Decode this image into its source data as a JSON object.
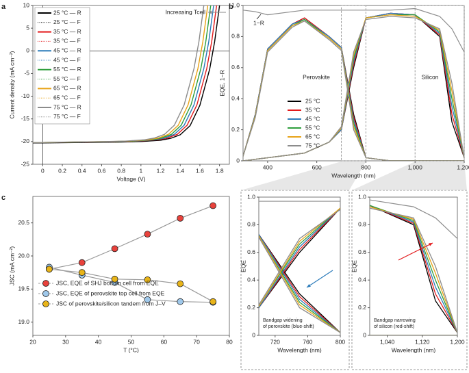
{
  "chart_data": [
    {
      "type": "line",
      "label": "a",
      "xlabel": "Voltage (V)",
      "ylabel": "Current density (mA cm⁻²)",
      "xlim": [
        -0.1,
        1.9
      ],
      "xticks": [
        0,
        0.2,
        0.4,
        0.6,
        0.8,
        1.0,
        1.2,
        1.4,
        1.6,
        1.8
      ],
      "ylim": [
        -25,
        10
      ],
      "yticks": [
        -25,
        -20,
        -15,
        -10,
        -5,
        0,
        5,
        10
      ],
      "annotation": "Increasing Tcell",
      "series": [
        {
          "name": "25 °C — R",
          "color": "#000000",
          "style": "solid",
          "x": [
            -0.1,
            0,
            0.4,
            0.8,
            1.0,
            1.2,
            1.3,
            1.4,
            1.5,
            1.6,
            1.7,
            1.75,
            1.8
          ],
          "values": [
            -20.3,
            -20.3,
            -20.2,
            -20.1,
            -20.0,
            -19.7,
            -19.3,
            -18.5,
            -16.5,
            -12,
            -4,
            2,
            10
          ]
        },
        {
          "name": "25 °C — F",
          "color": "#000000",
          "style": "dotted",
          "x": [
            -0.1,
            0,
            0.4,
            0.8,
            1.0,
            1.2,
            1.3,
            1.4,
            1.5,
            1.6,
            1.7,
            1.75,
            1.8
          ],
          "values": [
            -20.3,
            -20.3,
            -20.2,
            -20.1,
            -20.0,
            -19.7,
            -19.3,
            -18.5,
            -16.5,
            -12,
            -4,
            2,
            10
          ]
        },
        {
          "name": "35 °C — R",
          "color": "#e31a1c",
          "style": "solid",
          "x": [
            -0.1,
            0,
            0.37,
            0.77,
            0.97,
            1.17,
            1.27,
            1.37,
            1.47,
            1.57,
            1.67,
            1.72,
            1.77
          ],
          "values": [
            -20.2,
            -20.2,
            -20.1,
            -20.0,
            -19.9,
            -19.6,
            -19.2,
            -18.4,
            -16.4,
            -11.9,
            -3.9,
            2,
            10
          ]
        },
        {
          "name": "35 °C — F",
          "color": "#e31a1c",
          "style": "dotted",
          "x": [
            -0.1,
            0,
            0.37,
            0.77,
            0.97,
            1.17,
            1.27,
            1.37,
            1.47,
            1.57,
            1.67,
            1.72,
            1.77
          ],
          "values": [
            -20.2,
            -20.2,
            -20.1,
            -20.0,
            -19.9,
            -19.6,
            -19.2,
            -18.4,
            -16.4,
            -11.9,
            -3.9,
            2,
            10
          ]
        },
        {
          "name": "45 °C — R",
          "color": "#2b7bba",
          "style": "solid",
          "x": [
            -0.1,
            0,
            0.34,
            0.74,
            0.94,
            1.14,
            1.24,
            1.34,
            1.44,
            1.54,
            1.64,
            1.69,
            1.74
          ],
          "values": [
            -20.2,
            -20.2,
            -20.1,
            -20.0,
            -19.9,
            -19.6,
            -19.2,
            -18.4,
            -16.4,
            -11.9,
            -3.9,
            2,
            10
          ]
        },
        {
          "name": "45 °C — F",
          "color": "#2b7bba",
          "style": "dotted",
          "x": [
            -0.1,
            0,
            0.34,
            0.74,
            0.94,
            1.14,
            1.24,
            1.34,
            1.44,
            1.54,
            1.64,
            1.69,
            1.74
          ],
          "values": [
            -20.2,
            -20.2,
            -20.1,
            -20.0,
            -19.9,
            -19.6,
            -19.2,
            -18.4,
            -16.4,
            -11.9,
            -3.9,
            2,
            10
          ]
        },
        {
          "name": "55 °C — R",
          "color": "#2e9e3c",
          "style": "solid",
          "x": [
            -0.1,
            0,
            0.31,
            0.71,
            0.91,
            1.11,
            1.21,
            1.31,
            1.41,
            1.51,
            1.61,
            1.66,
            1.71
          ],
          "values": [
            -20.2,
            -20.2,
            -20.1,
            -20.0,
            -19.9,
            -19.6,
            -19.2,
            -18.4,
            -16.4,
            -11.9,
            -3.9,
            2,
            10
          ]
        },
        {
          "name": "55 °C — F",
          "color": "#2e9e3c",
          "style": "dotted",
          "x": [
            -0.1,
            0,
            0.31,
            0.71,
            0.91,
            1.11,
            1.21,
            1.31,
            1.41,
            1.51,
            1.61,
            1.66,
            1.71
          ],
          "values": [
            -20.2,
            -20.2,
            -20.1,
            -20.0,
            -19.9,
            -19.6,
            -19.2,
            -18.4,
            -16.4,
            -11.9,
            -3.9,
            2,
            10
          ]
        },
        {
          "name": "65 °C — R",
          "color": "#e8a317",
          "style": "solid",
          "x": [
            -0.1,
            0,
            0.28,
            0.68,
            0.88,
            1.08,
            1.18,
            1.28,
            1.38,
            1.48,
            1.58,
            1.63,
            1.68
          ],
          "values": [
            -20.2,
            -20.2,
            -20.1,
            -20.0,
            -19.9,
            -19.6,
            -19.2,
            -18.4,
            -16.4,
            -11.9,
            -3.9,
            2,
            10
          ]
        },
        {
          "name": "65 °C — F",
          "color": "#e8a317",
          "style": "dotted",
          "x": [
            -0.1,
            0,
            0.28,
            0.68,
            0.88,
            1.08,
            1.18,
            1.28,
            1.38,
            1.48,
            1.58,
            1.63,
            1.68
          ],
          "values": [
            -20.2,
            -20.2,
            -20.1,
            -20.0,
            -19.9,
            -19.6,
            -19.2,
            -18.4,
            -16.4,
            -11.9,
            -3.9,
            2,
            10
          ]
        },
        {
          "name": "75 °C — R",
          "color": "#8c8c8c",
          "style": "solid",
          "x": [
            -0.1,
            0,
            0.24,
            0.64,
            0.84,
            1.04,
            1.14,
            1.24,
            1.34,
            1.44,
            1.54,
            1.59,
            1.64
          ],
          "values": [
            -20.2,
            -20.2,
            -20.1,
            -20.0,
            -19.9,
            -19.6,
            -19.2,
            -18.4,
            -16.4,
            -11.9,
            -3.9,
            2,
            10
          ]
        },
        {
          "name": "75 °C — F",
          "color": "#8c8c8c",
          "style": "dotted",
          "x": [
            -0.1,
            0,
            0.24,
            0.64,
            0.84,
            1.04,
            1.14,
            1.24,
            1.34,
            1.44,
            1.54,
            1.59,
            1.64
          ],
          "values": [
            -20.2,
            -20.2,
            -20.1,
            -20.0,
            -19.9,
            -19.6,
            -19.2,
            -18.4,
            -16.4,
            -11.9,
            -3.9,
            2,
            10
          ]
        }
      ]
    },
    {
      "type": "line",
      "label": "b",
      "xlabel": "Wavelength (nm)",
      "ylabel": "EQE, 1−R",
      "xlim": [
        300,
        1200
      ],
      "xticks": [
        400,
        600,
        800,
        {
          "value": 1000,
          "label": "1,000"
        },
        {
          "value": 1200,
          "label": "1,200"
        }
      ],
      "ylim": [
        0,
        1
      ],
      "yticks": [
        0,
        0.2,
        0.4,
        0.6,
        0.8,
        {
          "value": 1,
          "label": "1.0"
        }
      ],
      "annotations": [
        "Perovskite",
        "Silicon",
        "1−R"
      ],
      "x": [
        300,
        350,
        400,
        500,
        550,
        650,
        700,
        750,
        800,
        900,
        1000,
        1100,
        1150,
        1200
      ],
      "reflectance": [
        0.97,
        0.96,
        0.94,
        0.96,
        0.97,
        0.97,
        0.97,
        0.97,
        0.97,
        0.97,
        0.98,
        0.93,
        0.85,
        0.7
      ],
      "series": [
        {
          "name": "25 °C",
          "color": "#000000",
          "values": [
            0.03,
            0.3,
            0.72,
            0.88,
            0.92,
            0.8,
            0.73,
            0.3,
            0.02,
            0,
            0,
            0,
            0,
            0
          ],
          "silicon": [
            0,
            0.01,
            0.02,
            0.04,
            0.05,
            0.12,
            0.2,
            0.6,
            0.92,
            0.95,
            0.94,
            0.8,
            0.25,
            0.02
          ]
        },
        {
          "name": "35 °C",
          "color": "#e31a1c",
          "values": [
            0.03,
            0.3,
            0.72,
            0.88,
            0.92,
            0.8,
            0.73,
            0.28,
            0.02,
            0,
            0,
            0,
            0,
            0
          ],
          "silicon": [
            0,
            0.01,
            0.02,
            0.04,
            0.05,
            0.12,
            0.2,
            0.62,
            0.92,
            0.95,
            0.94,
            0.81,
            0.3,
            0.02
          ]
        },
        {
          "name": "45 °C",
          "color": "#2b7bba",
          "values": [
            0.03,
            0.3,
            0.72,
            0.88,
            0.91,
            0.8,
            0.73,
            0.26,
            0.02,
            0,
            0,
            0,
            0,
            0
          ],
          "silicon": [
            0,
            0.01,
            0.02,
            0.04,
            0.05,
            0.12,
            0.2,
            0.64,
            0.92,
            0.95,
            0.94,
            0.82,
            0.35,
            0.02
          ]
        },
        {
          "name": "55 °C",
          "color": "#2e9e3c",
          "values": [
            0.03,
            0.29,
            0.71,
            0.87,
            0.91,
            0.79,
            0.72,
            0.24,
            0.02,
            0,
            0,
            0,
            0,
            0
          ],
          "silicon": [
            0,
            0.01,
            0.02,
            0.04,
            0.05,
            0.12,
            0.21,
            0.66,
            0.92,
            0.94,
            0.94,
            0.83,
            0.4,
            0.02
          ]
        },
        {
          "name": "65 °C",
          "color": "#e8a317",
          "values": [
            0.03,
            0.29,
            0.71,
            0.87,
            0.9,
            0.79,
            0.72,
            0.22,
            0.02,
            0,
            0,
            0,
            0,
            0
          ],
          "silicon": [
            0,
            0.01,
            0.02,
            0.04,
            0.05,
            0.12,
            0.21,
            0.68,
            0.92,
            0.94,
            0.93,
            0.84,
            0.45,
            0.02
          ]
        },
        {
          "name": "75 °C",
          "color": "#8c8c8c",
          "values": [
            0.03,
            0.28,
            0.7,
            0.86,
            0.9,
            0.78,
            0.71,
            0.2,
            0.02,
            0,
            0,
            0,
            0,
            0
          ],
          "silicon": [
            0,
            0.01,
            0.02,
            0.04,
            0.05,
            0.12,
            0.22,
            0.7,
            0.91,
            0.93,
            0.92,
            0.85,
            0.5,
            0.02
          ]
        }
      ]
    },
    {
      "type": "scatter",
      "label": "c",
      "xlabel": "T (°C)",
      "ylabel": "JSC (mA cm⁻²)",
      "xlim": [
        20,
        80
      ],
      "xticks": [
        20,
        30,
        40,
        50,
        60,
        70,
        80
      ],
      "ylim": [
        18.8,
        20.9
      ],
      "yticks": [
        {
          "value": 19,
          "label": "19.0"
        },
        19.5,
        {
          "value": 20,
          "label": "20.0"
        },
        20.5
      ],
      "x": [
        25,
        35,
        45,
        55,
        65,
        75
      ],
      "series": [
        {
          "name": "JSC, EQE of SHJ bottom cell from EQE",
          "color": "#e8423c",
          "values": [
            19.8,
            19.9,
            20.11,
            20.33,
            20.57,
            20.76
          ]
        },
        {
          "name": "JSC, EQE of perovskite top cell from EQE",
          "color": "#9fc8ea",
          "values": [
            19.83,
            19.71,
            19.6,
            19.34,
            19.31,
            19.3
          ]
        },
        {
          "name": "JSC of perovskite/silicon tandem from J–V",
          "color": "#e8b419",
          "values": [
            19.8,
            19.75,
            19.65,
            19.64,
            19.58,
            19.31
          ]
        }
      ]
    },
    {
      "type": "line",
      "xlabel": "Wavelength (nm)",
      "ylabel": "EQE",
      "xlim": [
        700,
        800
      ],
      "xticks": [
        720,
        760,
        800
      ],
      "ylim": [
        0,
        1
      ],
      "yticks": [
        0,
        0.2,
        0.4,
        0.6,
        0.8,
        {
          "value": 1,
          "label": "1.0"
        }
      ],
      "annotations": [
        "Bandgap widening",
        "of perovskite (blue-shift)"
      ]
    },
    {
      "type": "line",
      "xlabel": "Wavelength (nm)",
      "ylabel": "EQE",
      "xlim": [
        1000,
        1200
      ],
      "xticks": [
        {
          "value": 1040,
          "label": "1,040"
        },
        {
          "value": 1120,
          "label": "1,120"
        },
        {
          "value": 1200,
          "label": "1,200"
        }
      ],
      "ylim": [
        0,
        1
      ],
      "yticks": [
        0,
        0.2,
        0.4,
        0.6,
        0.8,
        {
          "value": 1,
          "label": "1.0"
        }
      ],
      "annotations": [
        "Bandgap narrowing",
        "of silicon (red-shift)"
      ]
    }
  ]
}
